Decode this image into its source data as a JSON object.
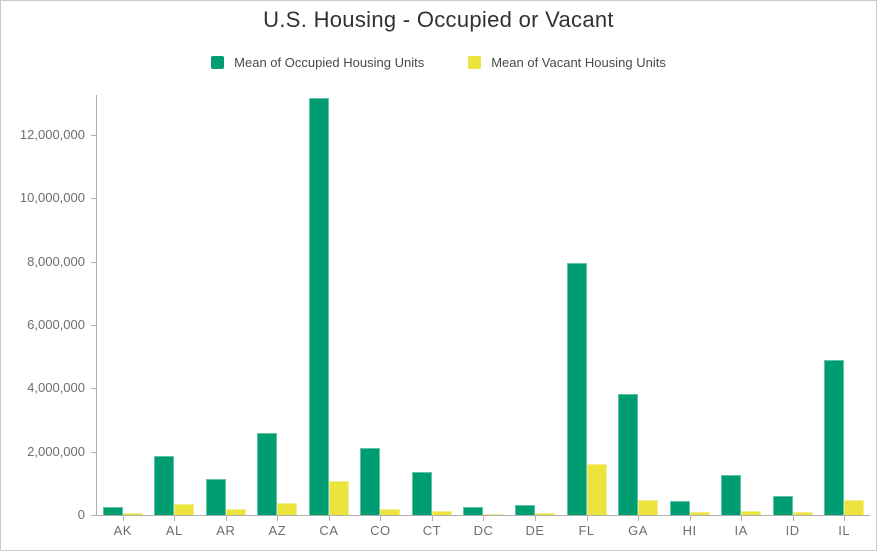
{
  "title": "U.S. Housing - Occupied or Vacant",
  "legend": {
    "items": [
      {
        "label": "Mean of Occupied Housing Units",
        "color": "#009d72"
      },
      {
        "label": "Mean of Vacant Housing Units",
        "color": "#ece33c"
      }
    ]
  },
  "chart_data": {
    "type": "bar",
    "title": "U.S. Housing - Occupied or Vacant",
    "xlabel": "",
    "ylabel": "",
    "grid": false,
    "legend_position": "top",
    "categories": [
      "AK",
      "AL",
      "AR",
      "AZ",
      "CA",
      "CO",
      "CT",
      "DC",
      "DE",
      "FL",
      "GA",
      "HI",
      "IA",
      "ID",
      "IL"
    ],
    "series": [
      {
        "name": "Mean of Occupied Housing Units",
        "color": "#009d72",
        "edge_color": "#5fc5a3",
        "values": [
          250000,
          1850000,
          1150000,
          2600000,
          13150000,
          2100000,
          1360000,
          260000,
          330000,
          7950000,
          3820000,
          450000,
          1260000,
          610000,
          4900000
        ]
      },
      {
        "name": "Mean of Vacant Housing Units",
        "color": "#ece33c",
        "edge_color": "#f3ee91",
        "values": [
          60000,
          350000,
          190000,
          380000,
          1080000,
          190000,
          120000,
          30000,
          60000,
          1600000,
          470000,
          80000,
          130000,
          80000,
          470000
        ]
      }
    ],
    "y_ticks": [
      0,
      2000000,
      4000000,
      6000000,
      8000000,
      10000000,
      12000000
    ],
    "ylim": [
      0,
      13260000
    ]
  }
}
